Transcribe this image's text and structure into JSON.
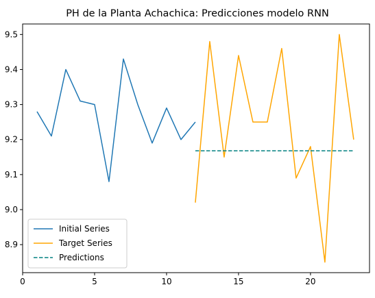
{
  "chart_data": {
    "type": "line",
    "title": "PH de la Planta Achachica: Predicciones modelo RNN",
    "xlabel": "",
    "ylabel": "",
    "xlim": [
      0,
      24.1
    ],
    "ylim": [
      8.82,
      9.53
    ],
    "xticks": [
      0,
      5,
      10,
      15,
      20
    ],
    "yticks": [
      8.9,
      9.0,
      9.1,
      9.2,
      9.3,
      9.4,
      9.5
    ],
    "grid": false,
    "legend_position": "bottom-left",
    "series": [
      {
        "name": "Initial Series",
        "color": "#1f77b4",
        "style": "solid",
        "x": [
          1,
          2,
          3,
          4,
          5,
          6,
          7,
          8,
          9,
          10,
          11,
          12
        ],
        "y": [
          9.28,
          9.21,
          9.4,
          9.31,
          9.3,
          9.08,
          9.43,
          9.3,
          9.19,
          9.29,
          9.2,
          9.25
        ]
      },
      {
        "name": "Target Series",
        "color": "#ffa500",
        "style": "solid",
        "x": [
          12,
          13,
          14,
          15,
          16,
          17,
          18,
          19,
          20,
          21,
          22,
          23
        ],
        "y": [
          9.02,
          9.48,
          9.15,
          9.44,
          9.25,
          9.25,
          9.46,
          9.09,
          9.18,
          8.85,
          9.5,
          9.2
        ]
      },
      {
        "name": "Predictions",
        "color": "#008080",
        "style": "dashed",
        "x": [
          12,
          13,
          14,
          15,
          16,
          17,
          18,
          19,
          20,
          21,
          22,
          23
        ],
        "y": [
          9.168,
          9.168,
          9.168,
          9.168,
          9.168,
          9.168,
          9.168,
          9.168,
          9.168,
          9.168,
          9.168,
          9.168
        ]
      }
    ]
  }
}
